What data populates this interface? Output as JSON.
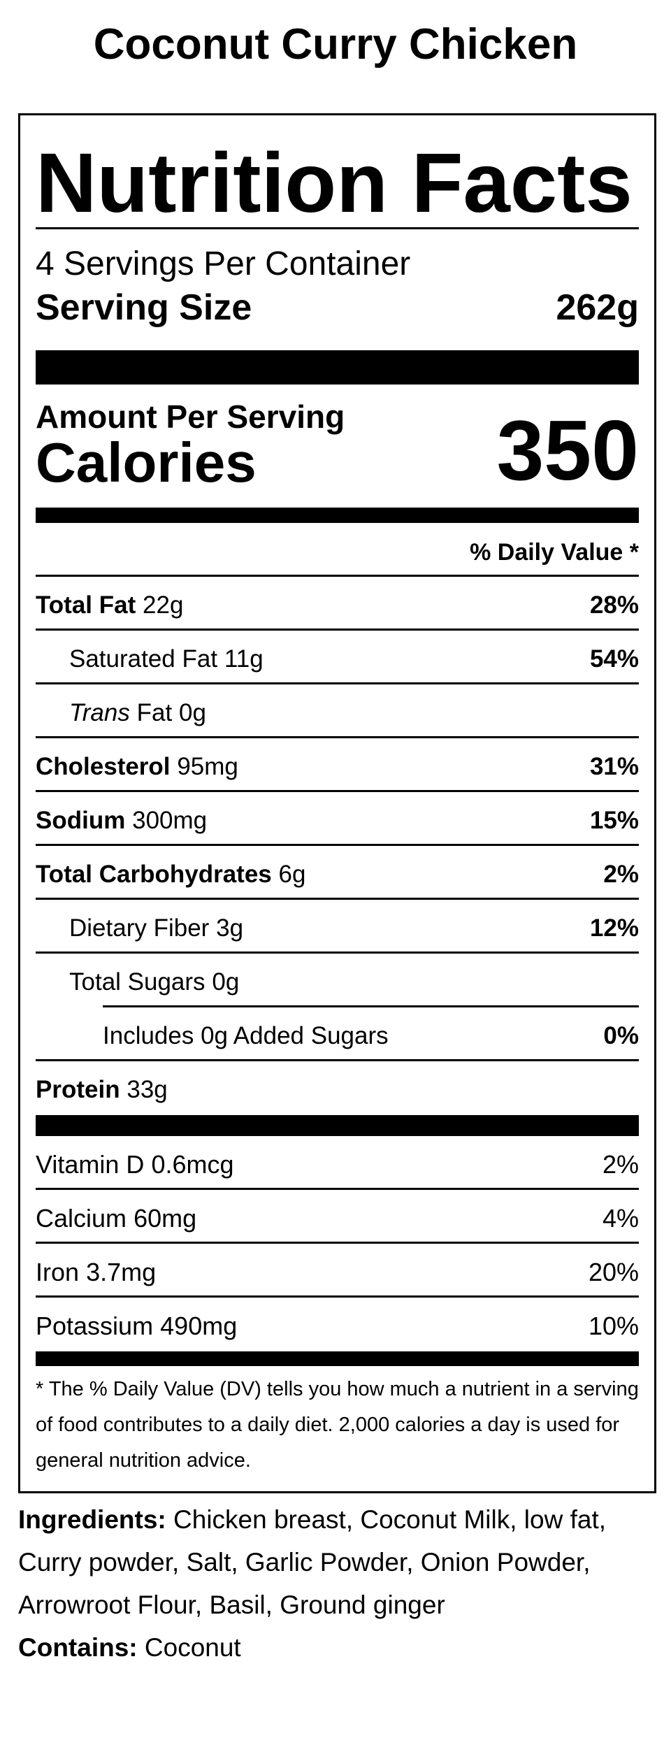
{
  "title": "Coconut Curry Chicken",
  "label": {
    "heading": "Nutrition Facts",
    "servings": "4 Servings Per Container",
    "serving_size_label": "Serving Size",
    "serving_size": "262g",
    "amount_per_serving": "Amount Per Serving",
    "calories_label": "Calories",
    "calories": "350",
    "daily_value_header": "% Daily Value *",
    "nutrients": [
      {
        "name": "Total Fat",
        "amount": "22g",
        "dv": "28%",
        "indent": 0
      },
      {
        "name": "Saturated Fat",
        "amount": "11g",
        "dv": "54%",
        "indent": 1
      },
      {
        "name_italic": "Trans",
        "name": "Fat",
        "amount": "0g",
        "indent": 1
      },
      {
        "name": "Cholesterol",
        "amount": "95mg",
        "dv": "31%",
        "indent": 0
      },
      {
        "name": "Sodium",
        "amount": "300mg",
        "dv": "15%",
        "indent": 0
      },
      {
        "name": "Total Carbohydrates",
        "amount": "6g",
        "dv": "2%",
        "indent": 0
      },
      {
        "name": "Dietary Fiber",
        "amount": "3g",
        "dv": "12%",
        "indent": 1
      },
      {
        "name": "Total Sugars",
        "amount": "0g",
        "indent": 1
      },
      {
        "name": "Includes 0g Added Sugars",
        "dv": "0%",
        "indent": 2
      },
      {
        "name": "Protein",
        "amount": "33g",
        "indent": 0
      }
    ],
    "vitamins": [
      {
        "name": "Vitamin D",
        "amount": "0.6mcg",
        "dv": "2%"
      },
      {
        "name": "Calcium",
        "amount": "60mg",
        "dv": "4%"
      },
      {
        "name": "Iron",
        "amount": "3.7mg",
        "dv": "20%"
      },
      {
        "name": "Potassium",
        "amount": "490mg",
        "dv": "10%"
      }
    ],
    "footnote": "* The % Daily Value (DV) tells you how much a nutrient in a serving of food contributes to a daily diet. 2,000 calories a day is used for general nutrition advice."
  },
  "ingredients": {
    "label": "Ingredients:",
    "text": "Chicken breast, Coconut Milk, low fat, Curry powder, Salt, Garlic Powder, Onion Powder, Arrowroot Flour, Basil, Ground ginger"
  },
  "contains": {
    "label": "Contains:",
    "text": "Coconut"
  }
}
